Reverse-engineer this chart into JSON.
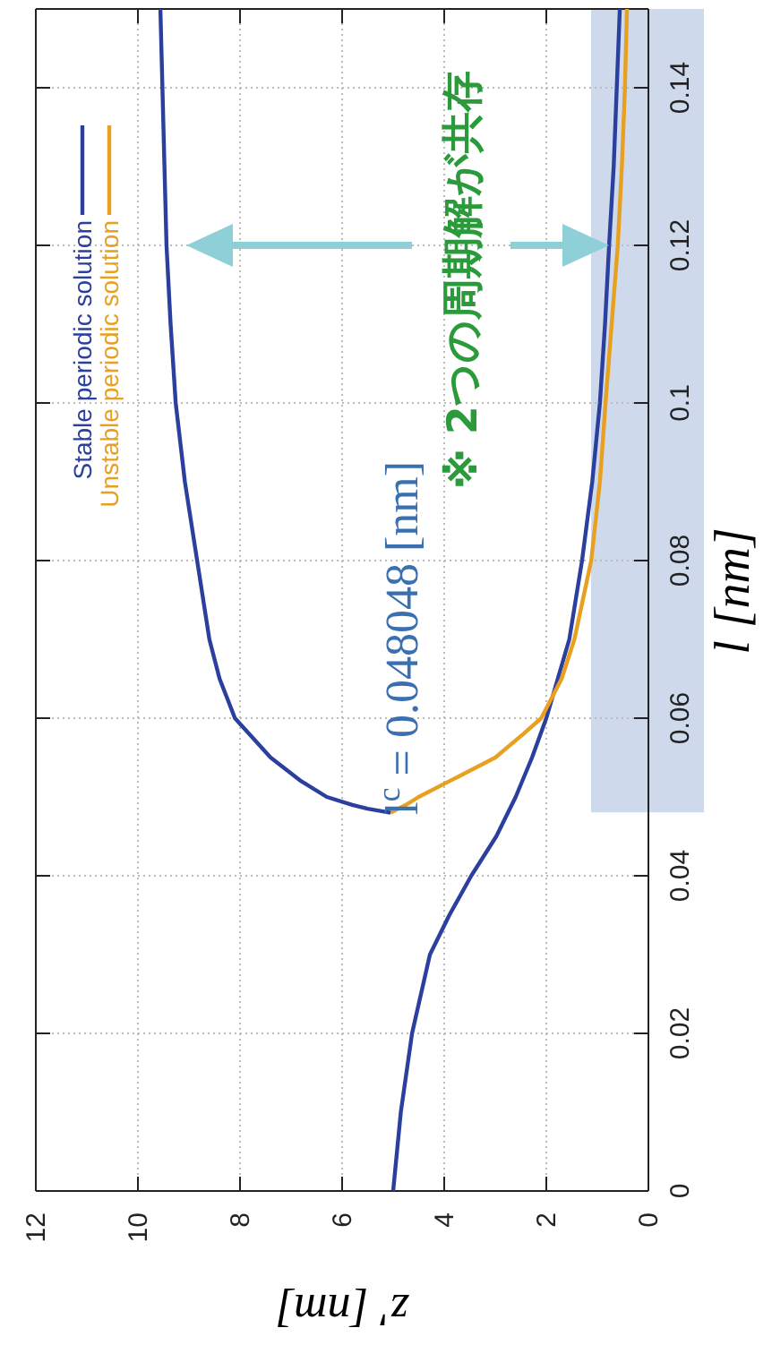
{
  "chart_data": {
    "type": "line",
    "xlabel": "z' [nm]",
    "ylabel": "l [nm]",
    "xlim": [
      12,
      0
    ],
    "ylim": [
      0,
      0.15
    ],
    "xticks": [
      12,
      10,
      8,
      6,
      4,
      2,
      0
    ],
    "yticks": [
      0,
      0.02,
      0.04,
      0.06,
      0.08,
      0.1,
      0.12,
      0.14
    ],
    "grid": true,
    "legend": "top left",
    "line_style": "solid",
    "series": [
      {
        "name": "Stable periodic solution",
        "color": "#2b3f9e",
        "values": [
          0,
          0.01,
          0.02,
          0.03,
          0.035,
          0.04,
          0.045,
          0.05,
          0.055,
          0.06,
          0.07,
          0.08,
          0.09,
          0.1,
          0.11,
          0.12,
          0.13,
          0.14,
          0.15
        ],
        "x": [
          5.0,
          4.85,
          4.63,
          4.28,
          3.9,
          3.47,
          2.98,
          2.6,
          2.28,
          2.0,
          1.55,
          1.3,
          1.1,
          0.95,
          0.85,
          0.77,
          0.68,
          0.62,
          0.56
        ]
      },
      {
        "name": "Unstable periodic solution",
        "color": "#e8a020",
        "values": [
          0.048,
          0.049,
          0.05,
          0.052,
          0.055,
          0.058,
          0.06,
          0.065,
          0.07,
          0.08,
          0.09,
          0.1,
          0.11,
          0.12,
          0.13,
          0.14,
          0.15
        ],
        "x": [
          5.05,
          4.75,
          4.5,
          3.9,
          3.0,
          2.45,
          2.1,
          1.7,
          1.45,
          1.12,
          0.95,
          0.84,
          0.72,
          0.6,
          0.52,
          0.46,
          0.42
        ]
      },
      {
        "color": "#2b3f9e",
        "values": [
          0.048,
          0.0485,
          0.049,
          0.05,
          0.052,
          0.055,
          0.06,
          0.065,
          0.07,
          0.08,
          0.09,
          0.1,
          0.11,
          0.12,
          0.13,
          0.14,
          0.15
        ],
        "x": [
          5.05,
          5.5,
          5.8,
          6.3,
          6.8,
          7.4,
          8.1,
          8.4,
          8.6,
          8.84,
          9.08,
          9.26,
          9.36,
          9.44,
          9.48,
          9.52,
          9.56
        ]
      }
    ],
    "bands": [
      {
        "axis": "y",
        "from": 0.048048,
        "to": 0.15,
        "color": "#c9d6ea"
      }
    ],
    "annotations": [
      "l$^{c}$ = 0.048048 [nm]",
      "※ 2つの周期解が共存"
    ]
  }
}
